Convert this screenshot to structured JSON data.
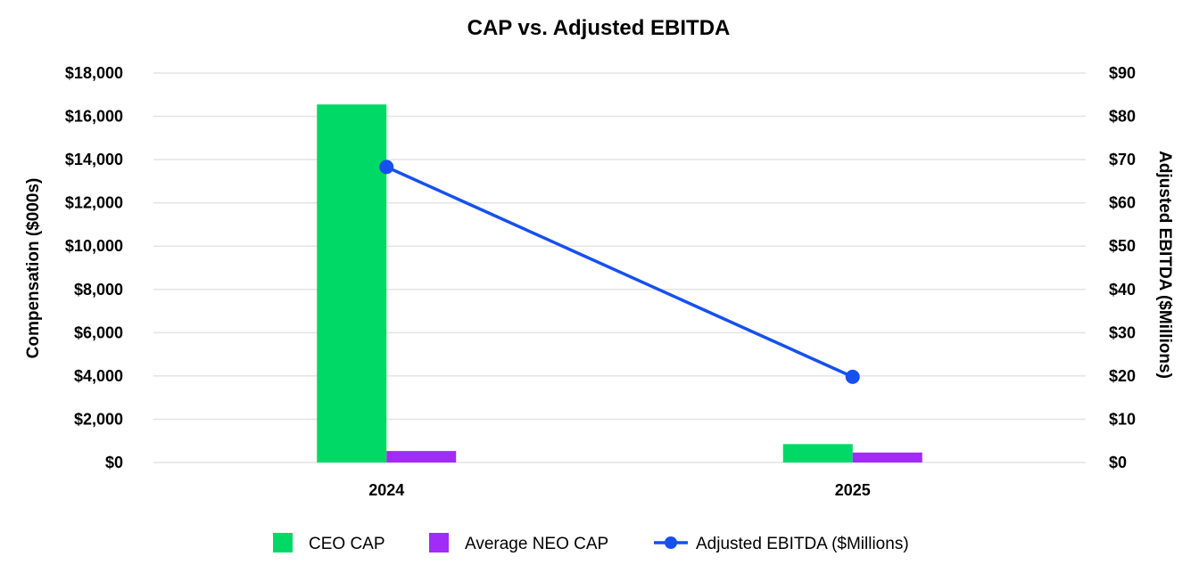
{
  "chart_data": {
    "type": "bar",
    "title": "CAP vs. Adjusted EBITDA",
    "categories": [
      "2024",
      "2025"
    ],
    "ylabel": "Compensation ($000s)",
    "y2label": "Adjusted EBITDA ($Millions)",
    "ylim": [
      0,
      18000
    ],
    "y2lim": [
      0,
      90
    ],
    "yticks": [
      "$0",
      "$2,000",
      "$4,000",
      "$6,000",
      "$8,000",
      "$10,000",
      "$12,000",
      "$14,000",
      "$16,000",
      "$18,000"
    ],
    "y2ticks": [
      "$0",
      "$10",
      "$20",
      "$30",
      "$40",
      "$50",
      "$60",
      "$70",
      "$80",
      "$90"
    ],
    "grid": true,
    "legend_position": "bottom",
    "series": [
      {
        "name": "CEO CAP",
        "type": "bar",
        "axis": "left",
        "color": "#00d966",
        "values": [
          16550,
          850
        ]
      },
      {
        "name": "Average NEO CAP",
        "type": "bar",
        "axis": "left",
        "color": "#a12cf5",
        "values": [
          530,
          460
        ]
      },
      {
        "name": "Adjusted EBITDA ($Millions)",
        "type": "line",
        "axis": "right",
        "color": "#1650ee",
        "values": [
          68.3,
          19.8
        ]
      }
    ]
  }
}
